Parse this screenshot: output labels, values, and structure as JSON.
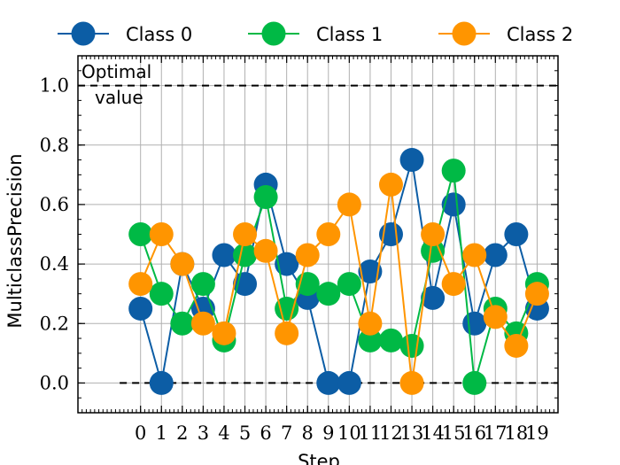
{
  "chart_data": {
    "type": "line",
    "title": "",
    "xlabel": "Step",
    "ylabel": "MulticlassPrecision",
    "x": [
      0,
      1,
      2,
      3,
      4,
      5,
      6,
      7,
      8,
      9,
      10,
      11,
      12,
      13,
      14,
      15,
      16,
      17,
      18,
      19
    ],
    "xlim": [
      -3,
      20
    ],
    "ylim": [
      -0.1,
      1.1
    ],
    "yticks": [
      0.0,
      0.2,
      0.4,
      0.6,
      0.8,
      1.0
    ],
    "ytick_labels": [
      "0.0",
      "0.2",
      "0.4",
      "0.6",
      "0.8",
      "1.0"
    ],
    "grid": true,
    "legend_position": "top",
    "series": [
      {
        "name": "Class 0",
        "color": "#0c5da5",
        "values": [
          0.25,
          0.0,
          0.4,
          0.25,
          0.43,
          0.333,
          0.667,
          0.4,
          0.286,
          0.0,
          0.0,
          0.375,
          0.5,
          0.75,
          0.286,
          0.6,
          0.2,
          0.43,
          0.5,
          0.25
        ]
      },
      {
        "name": "Class 1",
        "color": "#00b945",
        "values": [
          0.5,
          0.3,
          0.2,
          0.333,
          0.143,
          0.43,
          0.625,
          0.25,
          0.333,
          0.3,
          0.333,
          0.143,
          0.143,
          0.125,
          0.444,
          0.714,
          0.0,
          0.25,
          0.167,
          0.333
        ]
      },
      {
        "name": "Class 2",
        "color": "#ff9500",
        "values": [
          0.333,
          0.5,
          0.4,
          0.2,
          0.167,
          0.5,
          0.444,
          0.167,
          0.43,
          0.5,
          0.6,
          0.2,
          0.667,
          0.0,
          0.5,
          0.333,
          0.43,
          0.222,
          0.125,
          0.3
        ]
      }
    ],
    "reference_lines": [
      {
        "y": 1.0,
        "style": "dashed",
        "label": "Optimal value"
      },
      {
        "y": 0.0,
        "style": "dashed",
        "label": ""
      }
    ],
    "annotation": {
      "lines": [
        "Optimal",
        "value"
      ]
    }
  }
}
